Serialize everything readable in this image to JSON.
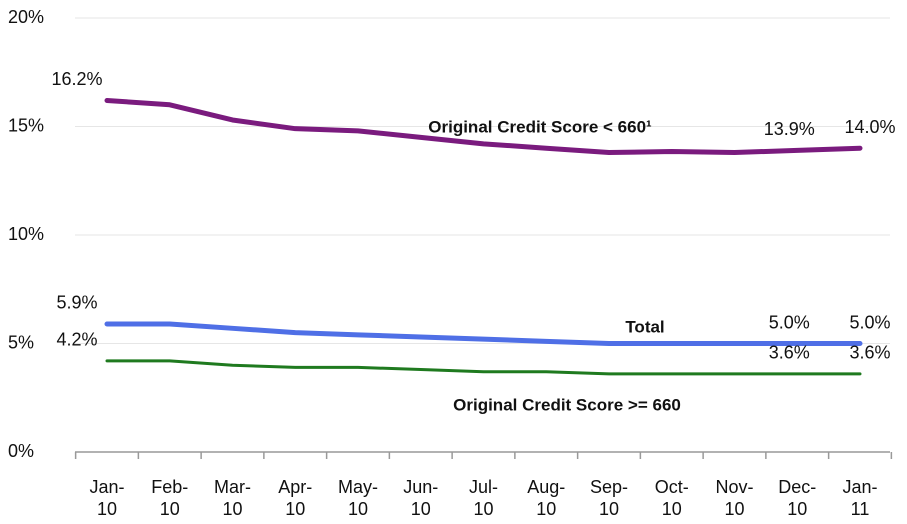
{
  "chart_data": {
    "type": "line",
    "categories": [
      "Jan-10",
      "Feb-10",
      "Mar-10",
      "Apr-10",
      "May-10",
      "Jun-10",
      "Jul-10",
      "Aug-10",
      "Sep-10",
      "Oct-10",
      "Nov-10",
      "Dec-10",
      "Jan-11"
    ],
    "series": [
      {
        "name": "Original Credit Score < 660¹",
        "color": "#7a1b7e",
        "values": [
          16.2,
          16.0,
          15.3,
          14.9,
          14.8,
          14.5,
          14.2,
          14.0,
          13.8,
          13.85,
          13.8,
          13.9,
          14.0
        ],
        "value_labels": [
          "16.2%",
          null,
          null,
          null,
          null,
          null,
          null,
          null,
          null,
          null,
          null,
          "13.9%",
          "14.0%"
        ]
      },
      {
        "name": "Total",
        "color": "#4f6fe6",
        "values": [
          5.9,
          5.9,
          5.7,
          5.5,
          5.4,
          5.3,
          5.2,
          5.1,
          5.0,
          5.0,
          5.0,
          5.0,
          5.0
        ],
        "value_labels": [
          "5.9%",
          null,
          null,
          null,
          null,
          null,
          null,
          null,
          null,
          null,
          null,
          "5.0%",
          "5.0%"
        ]
      },
      {
        "name": "Original Credit Score >= 660",
        "color": "#1f7a1f",
        "values": [
          4.2,
          4.2,
          4.0,
          3.9,
          3.9,
          3.8,
          3.7,
          3.7,
          3.6,
          3.6,
          3.6,
          3.6,
          3.6
        ],
        "value_labels": [
          "4.2%",
          null,
          null,
          null,
          null,
          null,
          null,
          null,
          null,
          null,
          null,
          "3.6%",
          "3.6%"
        ]
      }
    ],
    "ylim": [
      0,
      20
    ],
    "yticks": [
      {
        "value": 0,
        "label": "0%"
      },
      {
        "value": 5,
        "label": "5%"
      },
      {
        "value": 10,
        "label": "10%"
      },
      {
        "value": 15,
        "label": "15%"
      },
      {
        "value": 20,
        "label": "20%"
      }
    ],
    "grid": true
  }
}
